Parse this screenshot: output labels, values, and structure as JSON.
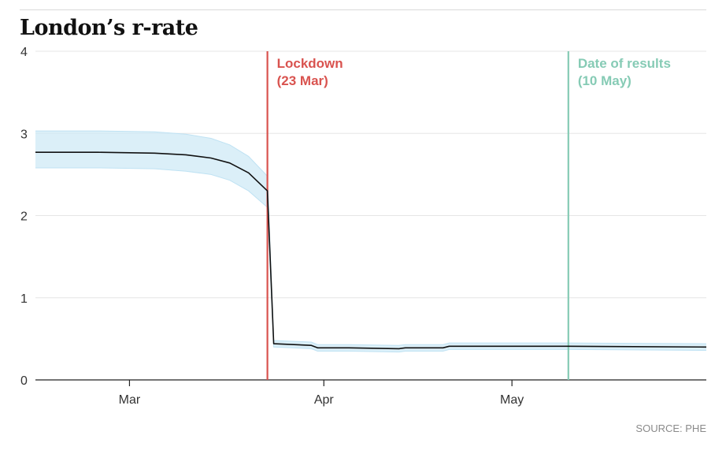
{
  "title": "London’s r-rate",
  "source": "SOURCE: PHE",
  "chart_data": {
    "type": "line",
    "title": "London’s r-rate",
    "xlabel": "",
    "ylabel": "",
    "ylim": [
      0,
      4
    ],
    "yticks": [
      "0",
      "1",
      "2",
      "3",
      "4"
    ],
    "xticks": [
      {
        "label": "Mar",
        "date": "2020-03-01"
      },
      {
        "label": "Apr",
        "date": "2020-04-01"
      },
      {
        "label": "May",
        "date": "2020-05-01"
      }
    ],
    "xlim": [
      "2020-02-15",
      "2020-06-01"
    ],
    "grid": true,
    "series": [
      {
        "color": "#111111",
        "band_color": "#cfe9f6",
        "points": [
          {
            "date": "2020-02-15",
            "value": 2.77,
            "lower": 2.58,
            "upper": 3.03
          },
          {
            "date": "2020-02-25",
            "value": 2.77,
            "lower": 2.58,
            "upper": 3.03
          },
          {
            "date": "2020-03-05",
            "value": 2.76,
            "lower": 2.57,
            "upper": 3.02
          },
          {
            "date": "2020-03-10",
            "value": 2.74,
            "lower": 2.54,
            "upper": 2.99
          },
          {
            "date": "2020-03-14",
            "value": 2.7,
            "lower": 2.5,
            "upper": 2.94
          },
          {
            "date": "2020-03-17",
            "value": 2.64,
            "lower": 2.43,
            "upper": 2.86
          },
          {
            "date": "2020-03-20",
            "value": 2.52,
            "lower": 2.3,
            "upper": 2.72
          },
          {
            "date": "2020-03-23",
            "value": 2.3,
            "lower": 2.1,
            "upper": 2.48
          },
          {
            "date": "2020-03-24",
            "value": 0.44,
            "lower": 0.4,
            "upper": 0.48
          },
          {
            "date": "2020-03-30",
            "value": 0.42,
            "lower": 0.38,
            "upper": 0.46
          },
          {
            "date": "2020-03-31",
            "value": 0.39,
            "lower": 0.35,
            "upper": 0.43
          },
          {
            "date": "2020-04-05",
            "value": 0.39,
            "lower": 0.35,
            "upper": 0.43
          },
          {
            "date": "2020-04-13",
            "value": 0.38,
            "lower": 0.34,
            "upper": 0.42
          },
          {
            "date": "2020-04-14",
            "value": 0.39,
            "lower": 0.35,
            "upper": 0.43
          },
          {
            "date": "2020-04-20",
            "value": 0.39,
            "lower": 0.35,
            "upper": 0.43
          },
          {
            "date": "2020-04-21",
            "value": 0.41,
            "lower": 0.37,
            "upper": 0.45
          },
          {
            "date": "2020-05-10",
            "value": 0.41,
            "lower": 0.37,
            "upper": 0.45
          },
          {
            "date": "2020-06-01",
            "value": 0.4,
            "lower": 0.36,
            "upper": 0.44
          }
        ]
      }
    ],
    "annotations": [
      {
        "date": "2020-03-23",
        "lines": [
          "Lockdown",
          "(23 Mar)"
        ],
        "color": "#d9534f"
      },
      {
        "date": "2020-05-10",
        "lines": [
          "Date of results",
          "(10 May)"
        ],
        "color": "#86cbb5"
      }
    ]
  }
}
